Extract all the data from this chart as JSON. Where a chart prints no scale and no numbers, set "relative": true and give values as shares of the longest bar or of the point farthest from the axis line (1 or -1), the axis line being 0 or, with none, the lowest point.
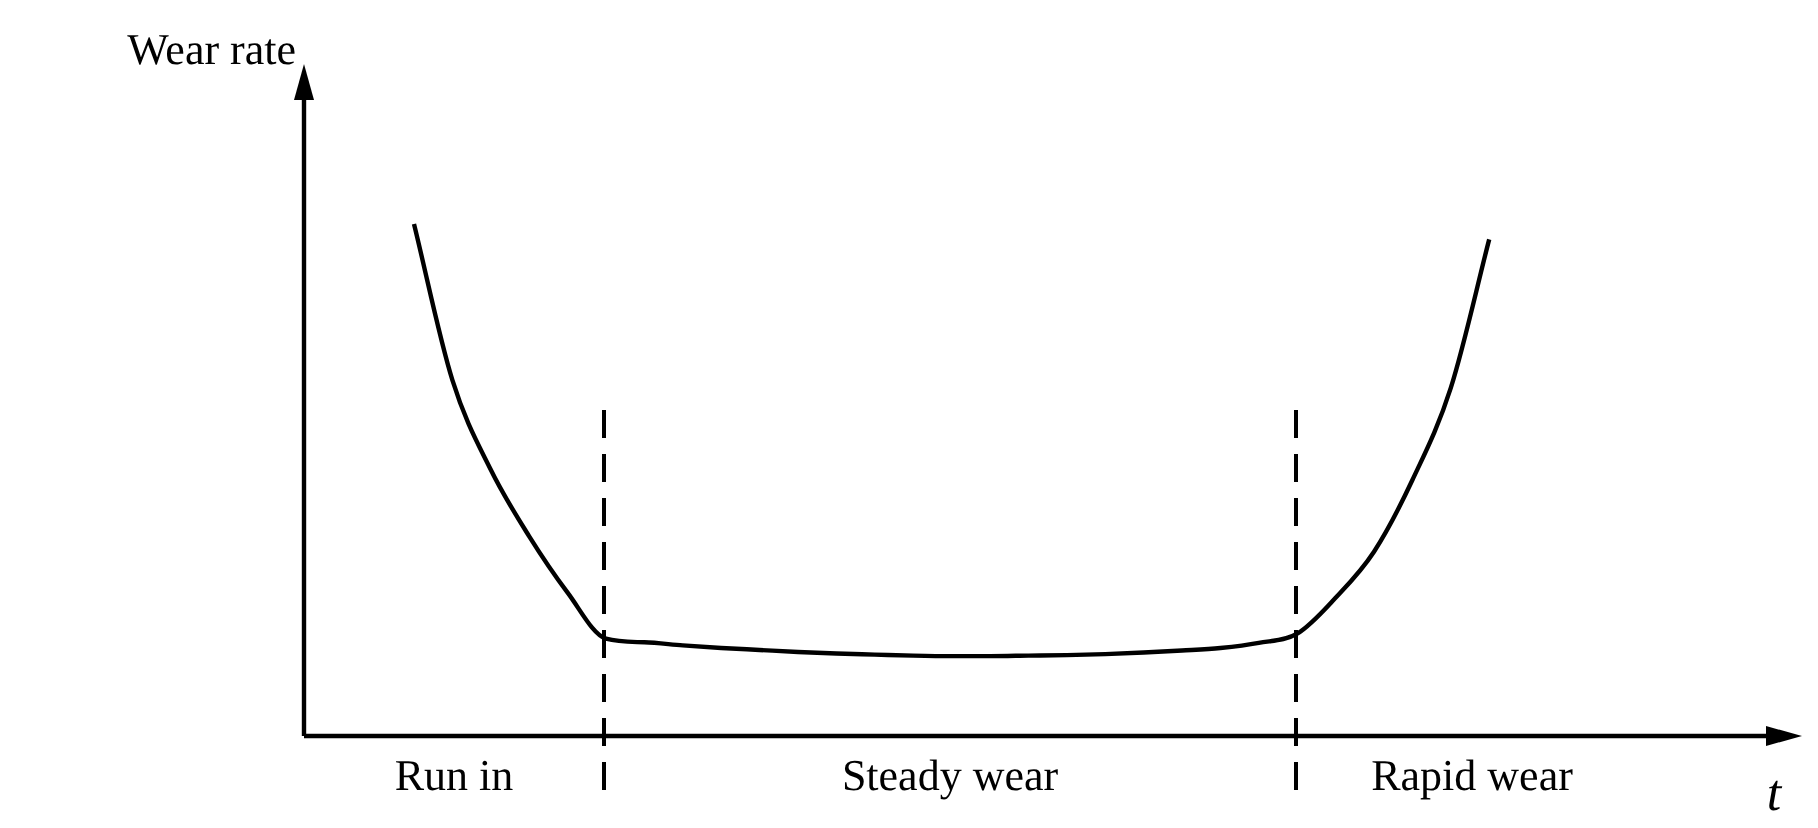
{
  "chart_data": {
    "type": "line",
    "relative": true,
    "xlabel": "t",
    "ylabel": "Wear rate",
    "categories": [
      null,
      null,
      null,
      null,
      null,
      null,
      null,
      null,
      null,
      null,
      null,
      null,
      null,
      null,
      null,
      null,
      null,
      null,
      null,
      null,
      null,
      null,
      null,
      null,
      null,
      null,
      null,
      null,
      null
    ],
    "series": [
      {
        "color": "#000000",
        "values": [
          1.0,
          0.695,
          0.52,
          0.39,
          0.28,
          0.19,
          0.183,
          0.177,
          0.172,
          0.168,
          0.164,
          0.161,
          0.159,
          0.157,
          0.156,
          0.156,
          0.157,
          0.158,
          0.16,
          0.163,
          0.167,
          0.172,
          0.182,
          0.2,
          0.27,
          0.36,
          0.5,
          0.68,
          0.97
        ]
      }
    ],
    "annotations": [
      "Run in",
      "Steady wear",
      "Rapid wear"
    ],
    "legend": false,
    "marker": "none",
    "line_style": "solid"
  }
}
